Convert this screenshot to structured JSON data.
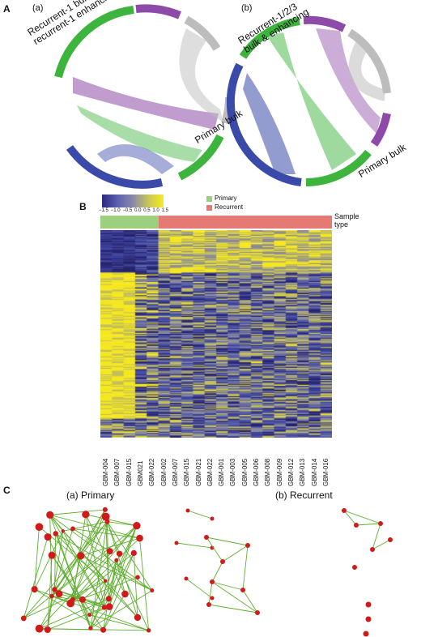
{
  "panel_a": {
    "letter": "A",
    "sub_a": "(a)",
    "sub_b": "(b)",
    "chord_a_label_top_1": "Recurrent-1 bulk &",
    "chord_a_label_top_2": "recurrent-1 enhancing",
    "chord_a_label_bottom": "Primary bulk",
    "chord_b_label_top_1": "Recurrent-1/2/3",
    "chord_b_label_top_2": "bulk & enhancing",
    "chord_b_label_bottom": "Primary bulk",
    "colors": {
      "green": "#3db43d",
      "purple": "#8e4aa8",
      "blue": "#3a4aa8",
      "grey": "#bdbdbd"
    }
  },
  "panel_b": {
    "letter": "B",
    "colorbar_ticks": [
      "−1.5",
      "−1.0",
      "−0.5",
      "0.0",
      "0.5",
      "1.0",
      "1.5"
    ],
    "legend_primary": "Primary",
    "legend_recurrent": "Recurrent",
    "sample_type_1": "Sample",
    "sample_type_2": "type",
    "primary_color": "#9ccf7e",
    "recurrent_color": "#e57a74",
    "n_primary": 5,
    "samples": [
      "GBM-004",
      "GBM-007",
      "GBM-015",
      "GBM021",
      "GBM-022",
      "GBM-002",
      "GBM-007",
      "GBM-015",
      "GBM-021",
      "GBM-022",
      "GBM-001",
      "GBM-003",
      "GBM-005",
      "GBM-006",
      "GBM-008",
      "GBM-009",
      "GBM-012",
      "GBM-013",
      "GBM-014",
      "GBM-016"
    ]
  },
  "panel_c": {
    "letter": "C",
    "title_primary": "(a) Primary",
    "title_recurrent": "(b) Recurrent"
  }
}
